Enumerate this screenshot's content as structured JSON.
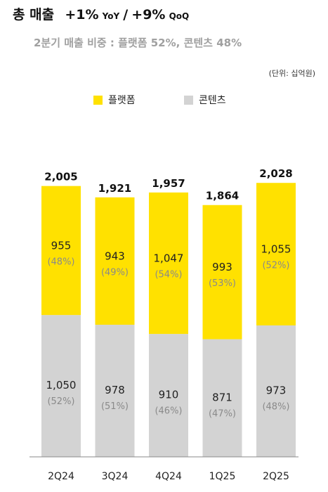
{
  "header": {
    "title": "총 매출",
    "yoy_value": "+1%",
    "yoy_label": "YoY",
    "separator": "/",
    "qoq_value": "+9%",
    "qoq_label": "QoQ",
    "subtitle": "2분기 매출 비중 : 플랫폼 52%, 콘텐츠 48%",
    "unit": "(단위: 십억원)"
  },
  "legend": [
    {
      "label": "플랫폼",
      "color": "#ffe100"
    },
    {
      "label": "콘텐츠",
      "color": "#d3d3d3"
    }
  ],
  "chart_data": {
    "type": "bar",
    "stacked": true,
    "categories": [
      "2Q24",
      "3Q24",
      "4Q24",
      "1Q25",
      "2Q25"
    ],
    "totals": [
      2005,
      1921,
      1957,
      1864,
      2028
    ],
    "totals_text": [
      "2,005",
      "1,921",
      "1,957",
      "1,864",
      "2,028"
    ],
    "series": [
      {
        "name": "콘텐츠",
        "color": "#d3d3d3",
        "values": [
          1050,
          978,
          910,
          871,
          973
        ],
        "value_labels": [
          "1,050",
          "978",
          "910",
          "871",
          "973"
        ],
        "pct_labels": [
          "(52%)",
          "(51%)",
          "(46%)",
          "(47%)",
          "(48%)"
        ]
      },
      {
        "name": "플랫폼",
        "color": "#ffe100",
        "values": [
          955,
          943,
          1047,
          993,
          1055
        ],
        "value_labels": [
          "955",
          "943",
          "1,047",
          "993",
          "1,055"
        ],
        "pct_labels": [
          "(48%)",
          "(49%)",
          "(54%)",
          "(53%)",
          "(52%)"
        ]
      }
    ],
    "grid": false,
    "legend_position": "top-center"
  }
}
